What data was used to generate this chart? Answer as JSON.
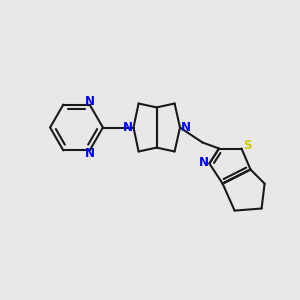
{
  "bg_color": "#e8e8e8",
  "bond_color": "#1a1a1a",
  "N_color": "#0000ff",
  "S_color": "#cccc00",
  "lw": 1.5,
  "fig_width": 3.0,
  "fig_height": 3.0,
  "dpi": 100,
  "xlim": [
    0,
    10
  ],
  "ylim": [
    0,
    10
  ]
}
